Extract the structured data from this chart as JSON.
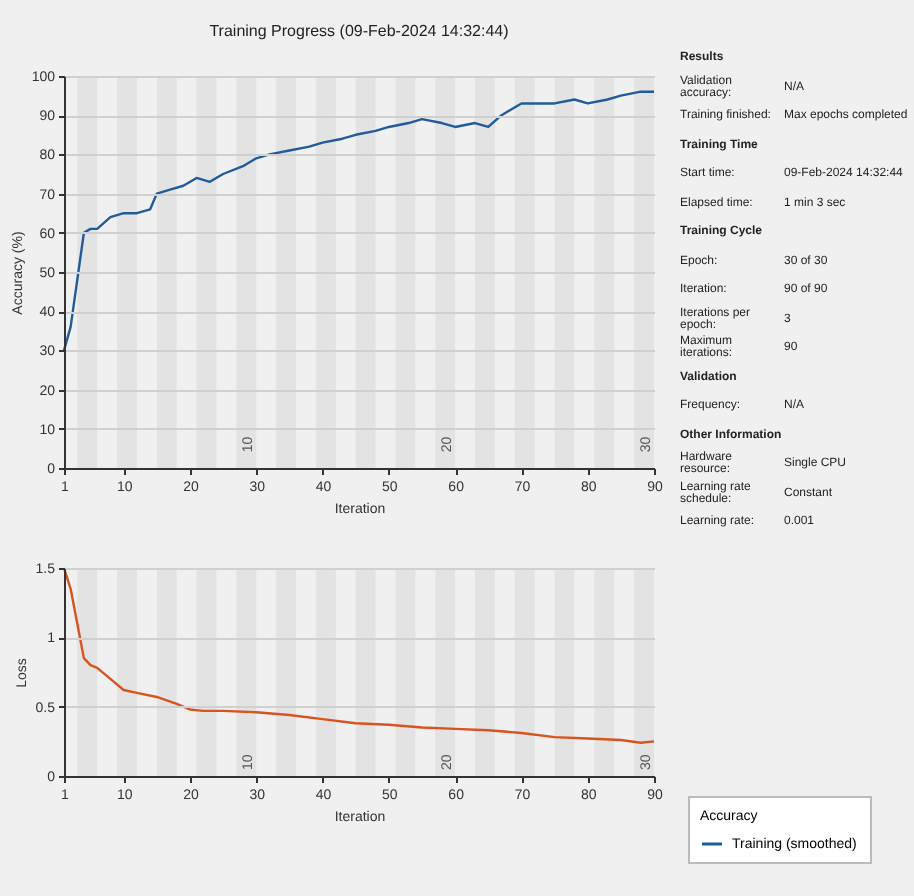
{
  "chart_data": [
    {
      "type": "line",
      "title": "Training Progress (09-Feb-2024 14:32:44)",
      "xlabel": "Iteration",
      "ylabel": "Accuracy (%)",
      "legend_title": "Accuracy",
      "legend": "bottom right",
      "grid": "y",
      "x": [
        1,
        2,
        3,
        4,
        5,
        6,
        8,
        10,
        12,
        14,
        15,
        17,
        19,
        21,
        23,
        25,
        28,
        30,
        32,
        35,
        38,
        40,
        43,
        45,
        48,
        50,
        53,
        55,
        58,
        60,
        63,
        65,
        67,
        70,
        72,
        75,
        78,
        80,
        83,
        85,
        88,
        90
      ],
      "series": [
        {
          "name": "Training (smoothed)",
          "color": "#1f5c99",
          "values": [
            30,
            36,
            48,
            60,
            61,
            61,
            64,
            65,
            65,
            66,
            70,
            71,
            72,
            74,
            73,
            75,
            77,
            79,
            80,
            81,
            82,
            83,
            84,
            85,
            86,
            87,
            88,
            89,
            88,
            87,
            88,
            87,
            90,
            93,
            93,
            93,
            94,
            93,
            94,
            95,
            96,
            96
          ]
        }
      ],
      "xlim": [
        1,
        90
      ],
      "xticks": [
        1,
        10,
        20,
        30,
        40,
        50,
        60,
        70,
        80,
        90
      ],
      "ylim": [
        0,
        100
      ],
      "yticks": [
        0,
        10,
        20,
        30,
        40,
        50,
        60,
        70,
        80,
        90,
        100
      ],
      "bands": [
        {
          "axis": "x",
          "from": 3,
          "to": 6,
          "color": "#e3e3e3"
        },
        {
          "axis": "x",
          "from": 9,
          "to": 12,
          "color": "#e3e3e3"
        },
        {
          "axis": "x",
          "from": 15,
          "to": 18,
          "color": "#e3e3e3"
        },
        {
          "axis": "x",
          "from": 21,
          "to": 24,
          "color": "#e3e3e3"
        },
        {
          "axis": "x",
          "from": 27,
          "to": 30,
          "color": "#e3e3e3"
        },
        {
          "axis": "x",
          "from": 33,
          "to": 36,
          "color": "#e3e3e3"
        },
        {
          "axis": "x",
          "from": 39,
          "to": 42,
          "color": "#e3e3e3"
        },
        {
          "axis": "x",
          "from": 45,
          "to": 48,
          "color": "#e3e3e3"
        },
        {
          "axis": "x",
          "from": 51,
          "to": 54,
          "color": "#e3e3e3"
        },
        {
          "axis": "x",
          "from": 57,
          "to": 60,
          "color": "#e3e3e3"
        },
        {
          "axis": "x",
          "from": 63,
          "to": 66,
          "color": "#e3e3e3"
        },
        {
          "axis": "x",
          "from": 69,
          "to": 72,
          "color": "#e3e3e3"
        },
        {
          "axis": "x",
          "from": 75,
          "to": 78,
          "color": "#e3e3e3"
        },
        {
          "axis": "x",
          "from": 81,
          "to": 84,
          "color": "#e3e3e3"
        },
        {
          "axis": "x",
          "from": 87,
          "to": 90,
          "color": "#e3e3e3"
        }
      ],
      "annotations": [
        {
          "text": "10",
          "x": 30,
          "y": 6
        },
        {
          "text": "20",
          "x": 60,
          "y": 6
        },
        {
          "text": "30",
          "x": 90,
          "y": 6
        }
      ]
    },
    {
      "type": "line",
      "xlabel": "Iteration",
      "ylabel": "Loss",
      "grid": "y",
      "x": [
        1,
        2,
        3,
        4,
        5,
        6,
        8,
        10,
        12,
        15,
        18,
        20,
        22,
        25,
        30,
        35,
        40,
        45,
        50,
        55,
        60,
        65,
        70,
        75,
        80,
        85,
        88,
        90
      ],
      "series": [
        {
          "color": "#d9531e",
          "values": [
            1.5,
            1.35,
            1.1,
            0.85,
            0.8,
            0.78,
            0.7,
            0.62,
            0.6,
            0.57,
            0.52,
            0.48,
            0.47,
            0.47,
            0.46,
            0.44,
            0.41,
            0.38,
            0.37,
            0.35,
            0.34,
            0.33,
            0.31,
            0.28,
            0.27,
            0.26,
            0.24,
            0.25
          ]
        }
      ],
      "xlim": [
        1,
        90
      ],
      "xticks": [
        1,
        10,
        20,
        30,
        40,
        50,
        60,
        70,
        80,
        90
      ],
      "ylim": [
        0,
        1.5
      ],
      "yticks": [
        0,
        0.5,
        1,
        1.5
      ],
      "bands": [
        {
          "axis": "x",
          "from": 3,
          "to": 6,
          "color": "#e3e3e3"
        },
        {
          "axis": "x",
          "from": 9,
          "to": 12,
          "color": "#e3e3e3"
        },
        {
          "axis": "x",
          "from": 15,
          "to": 18,
          "color": "#e3e3e3"
        },
        {
          "axis": "x",
          "from": 21,
          "to": 24,
          "color": "#e3e3e3"
        },
        {
          "axis": "x",
          "from": 27,
          "to": 30,
          "color": "#e3e3e3"
        },
        {
          "axis": "x",
          "from": 33,
          "to": 36,
          "color": "#e3e3e3"
        },
        {
          "axis": "x",
          "from": 39,
          "to": 42,
          "color": "#e3e3e3"
        },
        {
          "axis": "x",
          "from": 45,
          "to": 48,
          "color": "#e3e3e3"
        },
        {
          "axis": "x",
          "from": 51,
          "to": 54,
          "color": "#e3e3e3"
        },
        {
          "axis": "x",
          "from": 57,
          "to": 60,
          "color": "#e3e3e3"
        },
        {
          "axis": "x",
          "from": 63,
          "to": 66,
          "color": "#e3e3e3"
        },
        {
          "axis": "x",
          "from": 69,
          "to": 72,
          "color": "#e3e3e3"
        },
        {
          "axis": "x",
          "from": 75,
          "to": 78,
          "color": "#e3e3e3"
        },
        {
          "axis": "x",
          "from": 81,
          "to": 84,
          "color": "#e3e3e3"
        },
        {
          "axis": "x",
          "from": 87,
          "to": 90,
          "color": "#e3e3e3"
        }
      ],
      "annotations": [
        {
          "text": "10",
          "x": 30,
          "y": 0.1
        },
        {
          "text": "20",
          "x": 60,
          "y": 0.1
        },
        {
          "text": "30",
          "x": 90,
          "y": 0.1
        }
      ]
    },
    {
      "type": "other",
      "annotations": [
        "Results",
        "Validation accuracy: N/A",
        "Training finished: Max epochs completed",
        "Training Time",
        "Start time: 09-Feb-2024 14:32:44",
        "Elapsed time: 1 min 3 sec",
        "Training Cycle",
        "Epoch: 30 of 30",
        "Iteration: 90 of 90",
        "Iterations per epoch: 3",
        "Maximum iterations: 90",
        "Validation",
        "Frequency: N/A",
        "Other Information",
        "Hardware resource: Single CPU",
        "Learning rate schedule: Constant",
        "Learning rate: 0.001"
      ]
    }
  ]
}
